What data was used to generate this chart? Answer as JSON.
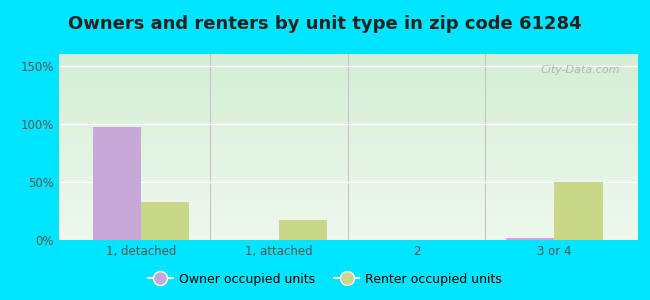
{
  "title": "Owners and renters by unit type in zip code 61284",
  "categories": [
    "1, detached",
    "1, attached",
    "2",
    "3 or 4"
  ],
  "owner_values": [
    97,
    0,
    0,
    2
  ],
  "renter_values": [
    33,
    17,
    0,
    50
  ],
  "owner_color": "#c8a8d8",
  "renter_color": "#c8d888",
  "yticks": [
    0,
    50,
    100,
    150
  ],
  "ytick_labels": [
    "0%",
    "50%",
    "100%",
    "150%"
  ],
  "ylim": [
    0,
    160
  ],
  "bar_width": 0.35,
  "plot_bg_top": "#e8f5e8",
  "plot_bg_bottom": "#d8edd8",
  "outer_bg": "#00e5ff",
  "title_fontsize": 13,
  "title_color": "#222222",
  "tick_color": "#555555",
  "legend_labels": [
    "Owner occupied units",
    "Renter occupied units"
  ],
  "watermark": "City-Data.com",
  "grid_color": "#ffffff",
  "separator_color": "#c0c0c0"
}
